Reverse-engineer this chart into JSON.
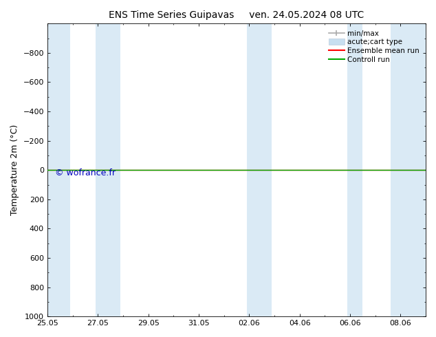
{
  "title_left": "ENS Time Series Guipavas",
  "title_right": "ven. 24.05.2024 08 UTC",
  "ylabel": "Temperature 2m (°C)",
  "watermark": "© wofrance.fr",
  "watermark_color": "#0000bb",
  "ylim_top": -1000,
  "ylim_bottom": 1000,
  "yticks": [
    -800,
    -600,
    -400,
    -200,
    0,
    200,
    400,
    600,
    800,
    1000
  ],
  "x_tick_labels": [
    "25.05",
    "27.05",
    "29.05",
    "31.05",
    "02.06",
    "04.06",
    "06.06",
    "08.06"
  ],
  "x_tick_positions": [
    0,
    2,
    4,
    6,
    8,
    10,
    12,
    14
  ],
  "shaded_bands": [
    [
      0.0,
      0.9
    ],
    [
      1.9,
      2.9
    ],
    [
      7.9,
      8.9
    ],
    [
      11.9,
      12.5
    ],
    [
      13.6,
      15.0
    ]
  ],
  "shaded_color": "#daeaf5",
  "green_line_y": 0,
  "red_line_y": 0,
  "legend_entries": [
    "min/max",
    "acute;cart type",
    "Ensemble mean run",
    "Controll run"
  ],
  "legend_colors_line": [
    "#aaaaaa",
    "#c8dff0",
    "#ff0000",
    "#00aa00"
  ],
  "bg_color": "#ffffff",
  "spine_color": "#000000",
  "x_min": 0,
  "x_max": 15
}
